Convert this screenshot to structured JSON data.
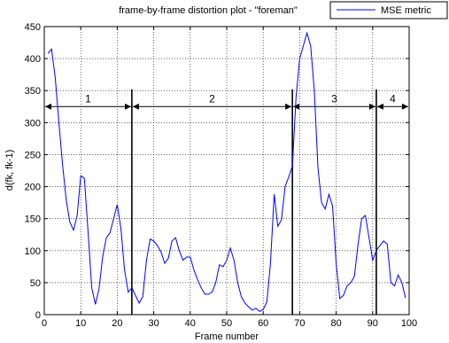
{
  "chart_data": {
    "type": "line",
    "title": "frame-by-frame distortion plot - \"foreman\"",
    "xlabel": "Frame number",
    "ylabel": "d(fk, fk-1)",
    "xlim": [
      0,
      100
    ],
    "ylim": [
      0,
      450
    ],
    "xticks": [
      0,
      10,
      20,
      30,
      40,
      50,
      60,
      70,
      80,
      90,
      100
    ],
    "yticks": [
      0,
      50,
      100,
      150,
      200,
      250,
      300,
      350,
      400,
      450
    ],
    "grid": true,
    "legend": "top-right",
    "series": [
      {
        "name": "MSE metric",
        "color": "#0000ff",
        "x": [
          1,
          2,
          3,
          4,
          5,
          6,
          7,
          8,
          9,
          10,
          11,
          12,
          13,
          14,
          15,
          16,
          17,
          18,
          19,
          20,
          21,
          22,
          23,
          24,
          25,
          26,
          27,
          28,
          29,
          30,
          31,
          32,
          33,
          34,
          35,
          36,
          37,
          38,
          39,
          40,
          41,
          42,
          43,
          44,
          45,
          46,
          47,
          48,
          49,
          50,
          51,
          52,
          53,
          54,
          55,
          56,
          57,
          58,
          59,
          60,
          61,
          62,
          63,
          64,
          65,
          66,
          67,
          68,
          69,
          70,
          71,
          72,
          73,
          74,
          75,
          76,
          77,
          78,
          79,
          80,
          81,
          82,
          83,
          84,
          85,
          86,
          87,
          88,
          89,
          90,
          91,
          92,
          93,
          94,
          95,
          96,
          97,
          98,
          99
        ],
        "y": [
          408,
          415,
          370,
          300,
          235,
          180,
          145,
          132,
          155,
          217,
          213,
          130,
          42,
          16,
          40,
          90,
          120,
          128,
          150,
          172,
          135,
          70,
          35,
          42,
          30,
          18,
          28,
          85,
          118,
          115,
          108,
          98,
          80,
          88,
          115,
          120,
          100,
          85,
          90,
          90,
          70,
          55,
          42,
          32,
          32,
          35,
          50,
          78,
          75,
          85,
          104,
          85,
          50,
          28,
          18,
          12,
          7,
          10,
          5,
          8,
          20,
          80,
          188,
          138,
          148,
          200,
          215,
          232,
          340,
          400,
          420,
          440,
          420,
          350,
          230,
          175,
          165,
          188,
          170,
          80,
          25,
          30,
          45,
          50,
          60,
          110,
          150,
          155,
          120,
          85,
          100,
          108,
          115,
          110,
          50,
          45,
          62,
          50,
          26
        ]
      }
    ],
    "annotations": {
      "boundaries": [
        24,
        68,
        91
      ],
      "arrow_y": 325,
      "segments": [
        {
          "label": "1",
          "from": 0,
          "to": 24
        },
        {
          "label": "2",
          "from": 24,
          "to": 68
        },
        {
          "label": "3",
          "from": 68,
          "to": 91
        },
        {
          "label": "4",
          "from": 91,
          "to": 100
        }
      ]
    }
  }
}
